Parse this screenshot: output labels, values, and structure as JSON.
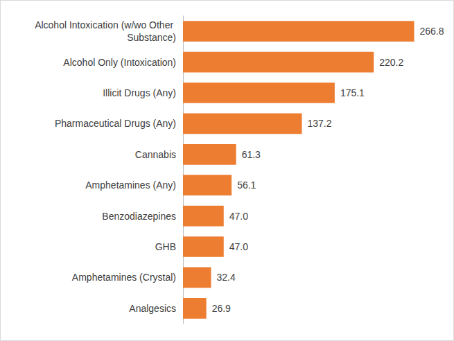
{
  "chart_data": {
    "type": "bar",
    "orientation": "horizontal",
    "categories": [
      "Alcohol Intoxication (w/wo Other Substance)",
      "Alcohol Only (Intoxication)",
      "Illicit Drugs (Any)",
      "Pharmaceutical Drugs (Any)",
      "Cannabis",
      "Amphetamines (Any)",
      "Benzodiazepines",
      "GHB",
      "Amphetamines (Crystal)",
      "Analgesics"
    ],
    "values": [
      266.8,
      220.2,
      175.1,
      137.2,
      61.3,
      56.1,
      47,
      47,
      32.4,
      26.9
    ],
    "value_labels": [
      "266.8",
      "220.2",
      "175.1",
      "137.2",
      "61.3",
      "56.1",
      "47.0",
      "47.0",
      "32.4",
      "26.9"
    ],
    "color": "#ed7d31",
    "xlim": [
      0,
      300
    ],
    "grid": false,
    "data_labels": true,
    "tick_labels": "y"
  }
}
